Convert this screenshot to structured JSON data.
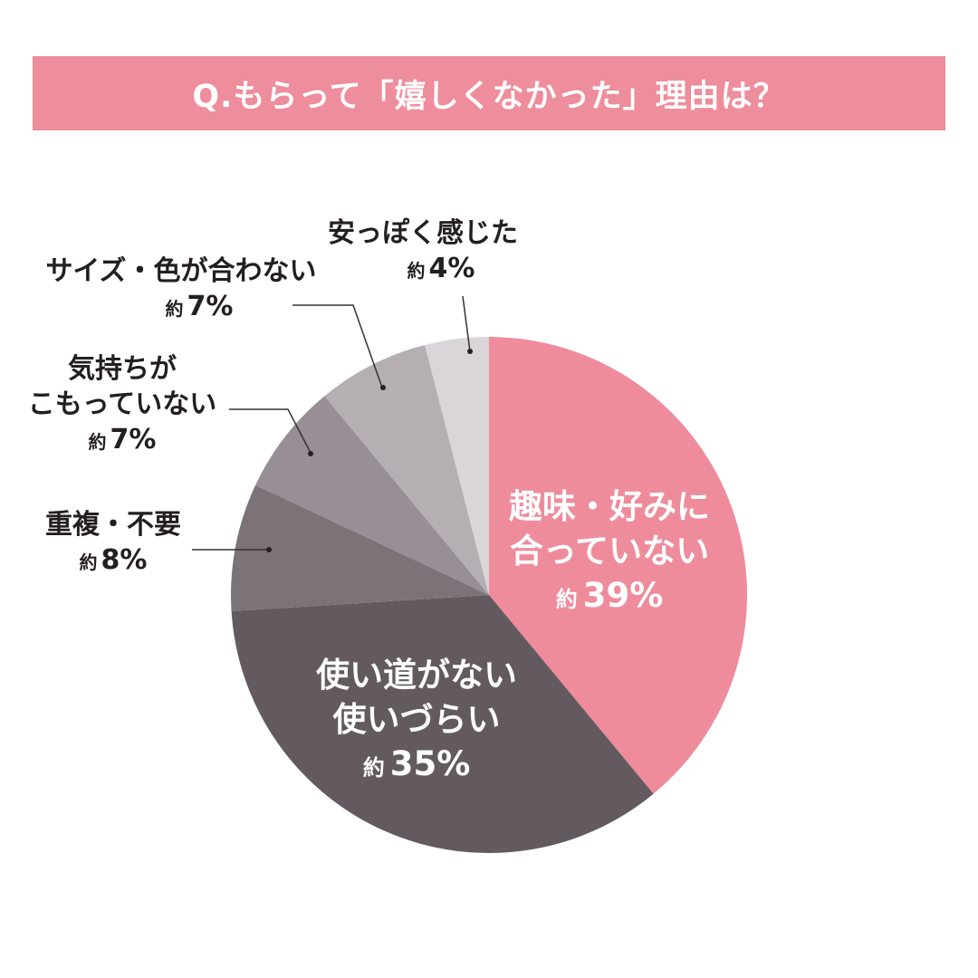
{
  "title": "Q.もらって「嬉しくなかった」理由は？",
  "approx_prefix": "約",
  "colors": {
    "title_bg": "#ee8d9c",
    "title_text": "#ffffff",
    "label_text": "#231f20",
    "leader_line": "#333333"
  },
  "chart_data": {
    "type": "pie",
    "title": "Q.もらって「嬉しくなかった」理由は？",
    "start_angle": "12 o'clock",
    "direction": "clockwise",
    "categories": [
      "趣味・好みに合っていない",
      "使い道がない 使いづらい",
      "重複・不要",
      "気持ちがこもっていない",
      "サイズ・色が合わない",
      "安っぽく感じた"
    ],
    "values": [
      39,
      35,
      8,
      7,
      7,
      4
    ],
    "unit": "%",
    "value_prefix": "約",
    "colors": [
      "#ee8c9c",
      "#625a5f",
      "#7b7378",
      "#978f95",
      "#b5afb4",
      "#d9d5d9"
    ],
    "legend": "none (direct labels)"
  },
  "labels": {
    "inside": [
      {
        "lines": [
          "趣味・好みに",
          "合っていない"
        ],
        "pct": "39%"
      },
      {
        "lines": [
          "使い道がない",
          "使いづらい"
        ],
        "pct": "35%"
      }
    ],
    "outside": [
      {
        "lines": [
          "重複・不要"
        ],
        "pct": "8%"
      },
      {
        "lines": [
          "気持ちが",
          "こもっていない"
        ],
        "pct": "7%"
      },
      {
        "lines": [
          "サイズ・色が合わない"
        ],
        "pct": "7%"
      },
      {
        "lines": [
          "安っぽく感じた"
        ],
        "pct": "4%"
      }
    ]
  }
}
